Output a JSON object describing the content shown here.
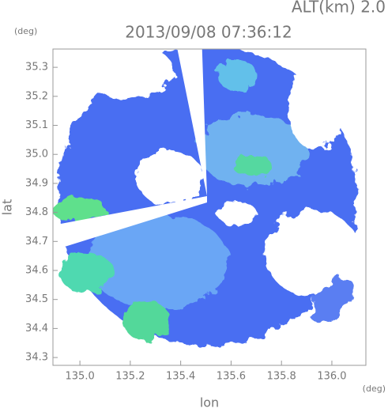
{
  "chart_data": {
    "type": "radar-map",
    "title": "2013/09/08 07:36:12",
    "altitude_label": "ALT(km) 2.0",
    "x_label": "lon",
    "y_label": "lat",
    "x_unit": "(deg)",
    "y_unit": "(deg)",
    "xlim": [
      134.893,
      136.135
    ],
    "ylim": [
      34.273,
      35.363
    ],
    "xticks": [
      {
        "value": 135,
        "label": "135.0"
      },
      135.2,
      135.4,
      135.6,
      135.8,
      {
        "value": 136,
        "label": "136.0"
      }
    ],
    "yticks": [
      35.3,
      35.2,
      35.1,
      {
        "value": 35,
        "label": "35.0"
      },
      34.9,
      34.8,
      34.7,
      34.6,
      34.5,
      34.4,
      34.3
    ]
  }
}
